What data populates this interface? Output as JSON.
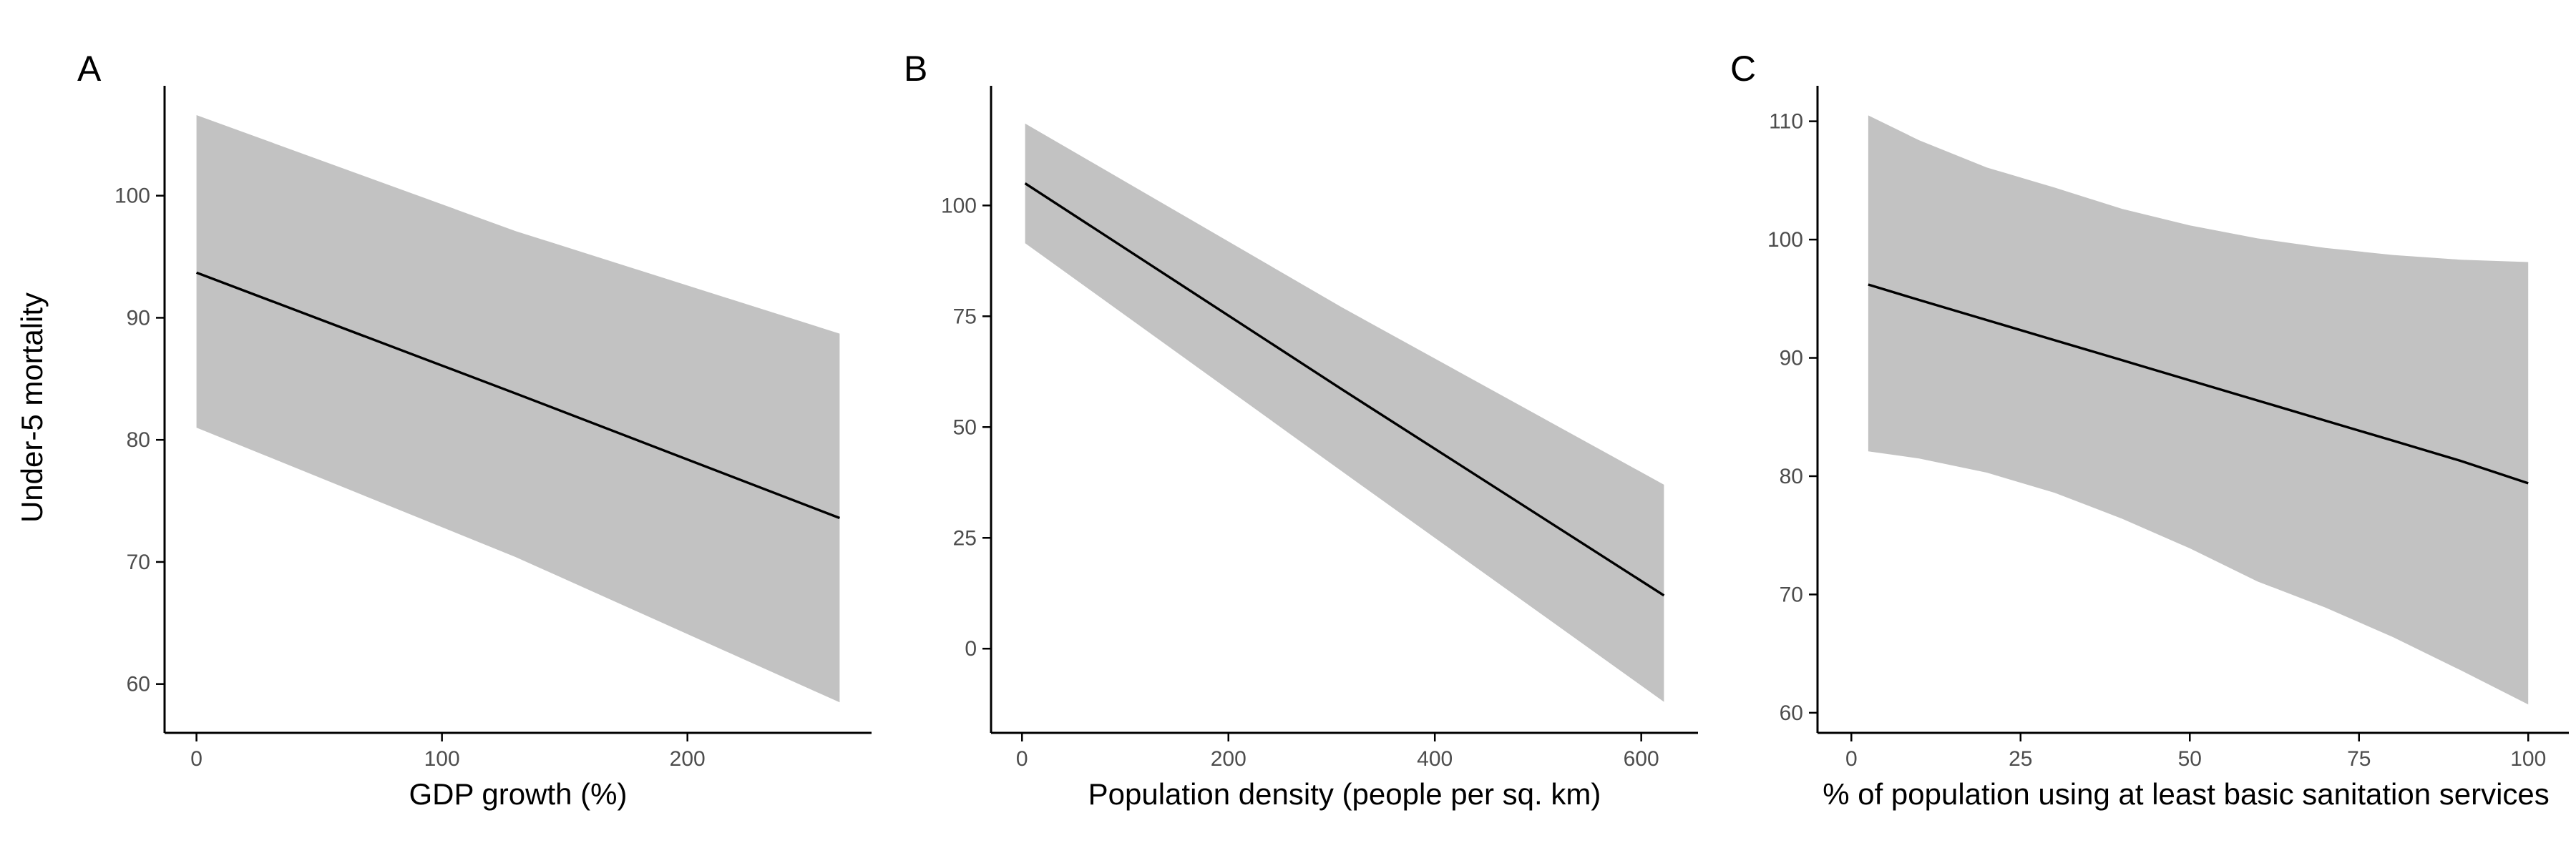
{
  "colors": {
    "ribbon": "#c2c2c2",
    "line": "#000000",
    "axis": "#000000",
    "tick_text": "#4d4d4d"
  },
  "figure": {
    "ylabel": "Under-5 mortality"
  },
  "chart_data": [
    {
      "type": "line",
      "panel_label": "A",
      "xlabel": "GDP growth (%)",
      "ylabel": "Under-5 mortality",
      "xlim": [
        -13,
        275
      ],
      "ylim": [
        56,
        109
      ],
      "xticks": [
        0,
        100,
        200
      ],
      "yticks": [
        60,
        70,
        80,
        90,
        100
      ],
      "series": [
        {
          "x": [
            0,
            130,
            262
          ],
          "y": [
            93.7,
            83.8,
            73.6
          ],
          "lower": [
            81.0,
            70.4,
            58.5
          ],
          "upper": [
            106.6,
            97.1,
            88.7
          ]
        }
      ]
    },
    {
      "type": "line",
      "panel_label": "B",
      "xlabel": "Population density (people per sq. km)",
      "ylabel": "",
      "xlim": [
        -30,
        655
      ],
      "ylim": [
        -19,
        127
      ],
      "xticks": [
        0,
        200,
        400,
        600
      ],
      "yticks": [
        0,
        25,
        50,
        75,
        100
      ],
      "series": [
        {
          "x": [
            3,
            310,
            622
          ],
          "y": [
            105,
            58.5,
            12
          ],
          "lower": [
            91.5,
            40,
            -12
          ],
          "upper": [
            118.5,
            77,
            37
          ]
        }
      ]
    },
    {
      "type": "line",
      "panel_label": "C",
      "xlabel": "% of population using at least basic sanitation services",
      "ylabel": "",
      "xlim": [
        -5,
        106
      ],
      "ylim": [
        58.3,
        113
      ],
      "xticks": [
        0,
        25,
        50,
        75,
        100
      ],
      "yticks": [
        60,
        70,
        80,
        90,
        100,
        110
      ],
      "series": [
        {
          "x": [
            2.5,
            10,
            20,
            30,
            40,
            50,
            60,
            70,
            80,
            90,
            100
          ],
          "y": [
            96.2,
            94.9,
            93.2,
            91.5,
            89.8,
            88.1,
            86.4,
            84.7,
            83.0,
            81.3,
            79.4
          ],
          "lower": [
            82.1,
            81.5,
            80.3,
            78.6,
            76.4,
            73.9,
            71.1,
            68.9,
            66.4,
            63.6,
            60.7
          ],
          "upper": [
            110.5,
            108.4,
            106.1,
            104.4,
            102.6,
            101.2,
            100.1,
            99.3,
            98.7,
            98.3,
            98.1
          ]
        }
      ]
    }
  ]
}
